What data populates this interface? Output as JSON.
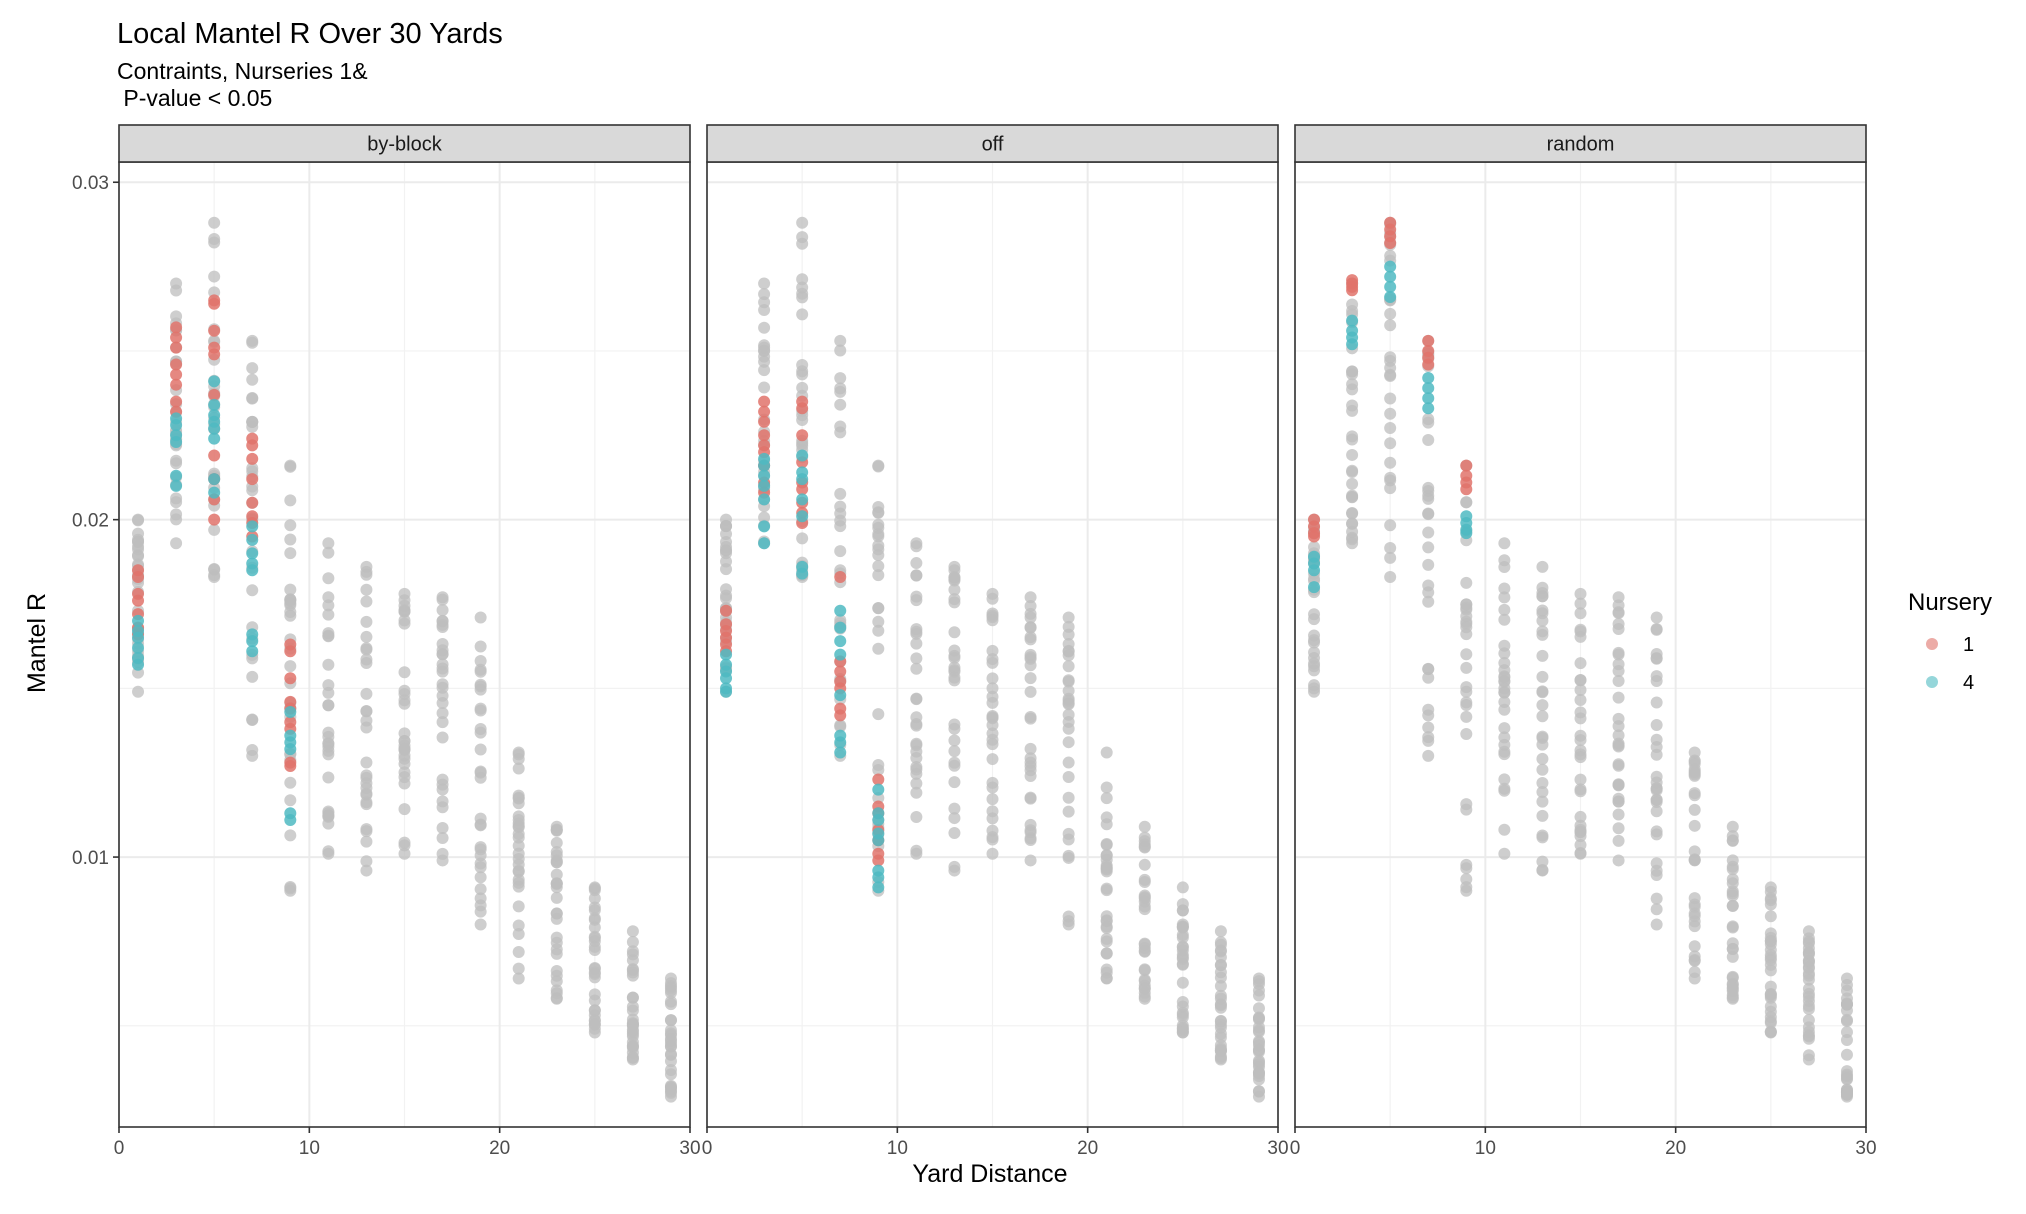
{
  "chart_data": {
    "type": "scatter",
    "title": "Local Mantel R Over 30 Yards",
    "subtitle_lines": [
      "Contraints, Nurseries 1&",
      " P-value < 0.05"
    ],
    "xlabel": "Yard Distance",
    "ylabel": "Mantel R",
    "xlim": [
      0,
      30
    ],
    "ylim": [
      0.002,
      0.0306
    ],
    "x_ticks": [
      0,
      10,
      20,
      30
    ],
    "x_tick_labels": [
      "0",
      "10",
      "20",
      "30"
    ],
    "y_ticks": [
      0.01,
      0.02,
      0.03
    ],
    "y_tick_labels": [
      "0.01",
      "0.02",
      "0.03"
    ],
    "grid": true,
    "facets": [
      "by-block",
      "off",
      "random"
    ],
    "legend": {
      "title": "Nursery",
      "placement": "right",
      "entries": [
        {
          "label": "1",
          "color": "#E0736B"
        },
        {
          "label": "4",
          "color": "#4FBAC2"
        }
      ]
    },
    "colors": {
      "background_points": "#BEBEBE",
      "nursery_1": "#E0736B",
      "nursery_4": "#4FBAC2"
    },
    "background": {
      "x": [
        1,
        3,
        5,
        7,
        9,
        11,
        13,
        15,
        17,
        19,
        21,
        23,
        25,
        27,
        29
      ],
      "ranges": [
        [
          0.0149,
          0.02
        ],
        [
          0.0193,
          0.027
        ],
        [
          0.0183,
          0.0288
        ],
        [
          0.013,
          0.0253
        ],
        [
          0.009,
          0.0216
        ],
        [
          0.0101,
          0.0193
        ],
        [
          0.0096,
          0.0186
        ],
        [
          0.0101,
          0.0178
        ],
        [
          0.0099,
          0.0177
        ],
        [
          0.008,
          0.0171
        ],
        [
          0.0064,
          0.0131
        ],
        [
          0.0058,
          0.0109
        ],
        [
          0.0048,
          0.0091
        ],
        [
          0.004,
          0.0078
        ],
        [
          0.0029,
          0.0064
        ]
      ]
    },
    "highlights": {
      "by-block": [
        {
          "nursery": "1",
          "x": 1,
          "y": [
            0.0185,
            0.0183,
            0.0178,
            0.0176,
            0.0172,
            0.0168,
            0.0166
          ]
        },
        {
          "nursery": "4",
          "x": 1,
          "y": [
            0.017,
            0.0167,
            0.0165,
            0.0162,
            0.0159,
            0.0157
          ]
        },
        {
          "nursery": "1",
          "x": 3,
          "y": [
            0.0257,
            0.0254,
            0.0251,
            0.0246,
            0.0243,
            0.024,
            0.0235,
            0.0232
          ]
        },
        {
          "nursery": "4",
          "x": 3,
          "y": [
            0.023,
            0.0228,
            0.0225,
            0.0223,
            0.0213,
            0.021
          ]
        },
        {
          "nursery": "1",
          "x": 5,
          "y": [
            0.0265,
            0.0264,
            0.0256,
            0.0251,
            0.0249,
            0.0237,
            0.0219,
            0.0212,
            0.0206,
            0.02
          ]
        },
        {
          "nursery": "4",
          "x": 5,
          "y": [
            0.0241,
            0.0234,
            0.0231,
            0.0229,
            0.0227,
            0.0224,
            0.0212,
            0.0208
          ]
        },
        {
          "nursery": "1",
          "x": 7,
          "y": [
            0.0224,
            0.0222,
            0.0218,
            0.0212,
            0.0205,
            0.0201,
            0.0199,
            0.0195
          ]
        },
        {
          "nursery": "4",
          "x": 7,
          "y": [
            0.0198,
            0.0194,
            0.019,
            0.0187,
            0.0185,
            0.0166,
            0.0164,
            0.0161
          ]
        },
        {
          "nursery": "1",
          "x": 9,
          "y": [
            0.0163,
            0.0161,
            0.0153,
            0.0146,
            0.0144,
            0.014,
            0.0138,
            0.0128,
            0.0127
          ]
        },
        {
          "nursery": "4",
          "x": 9,
          "y": [
            0.0143,
            0.0136,
            0.0134,
            0.0132,
            0.0113,
            0.0111
          ]
        }
      ],
      "off": [
        {
          "nursery": "1",
          "x": 1,
          "y": [
            0.0173,
            0.0169,
            0.0167,
            0.0165,
            0.0163,
            0.0161
          ]
        },
        {
          "nursery": "4",
          "x": 1,
          "y": [
            0.016,
            0.0157,
            0.0155,
            0.0153,
            0.015,
            0.0149
          ]
        },
        {
          "nursery": "1",
          "x": 3,
          "y": [
            0.0235,
            0.0232,
            0.0229,
            0.0225,
            0.0222,
            0.022,
            0.0216,
            0.0211,
            0.0208
          ]
        },
        {
          "nursery": "4",
          "x": 3,
          "y": [
            0.0218,
            0.0216,
            0.0213,
            0.021,
            0.0206,
            0.0198,
            0.0193
          ]
        },
        {
          "nursery": "1",
          "x": 5,
          "y": [
            0.0235,
            0.0233,
            0.0225,
            0.0217,
            0.0211,
            0.0209,
            0.0205,
            0.0202,
            0.0199
          ]
        },
        {
          "nursery": "4",
          "x": 5,
          "y": [
            0.0219,
            0.0214,
            0.0212,
            0.0206,
            0.0201,
            0.0186,
            0.0184
          ]
        },
        {
          "nursery": "1",
          "x": 7,
          "y": [
            0.0183,
            0.0158,
            0.0155,
            0.0152,
            0.015,
            0.0144,
            0.0142
          ]
        },
        {
          "nursery": "4",
          "x": 7,
          "y": [
            0.0173,
            0.0168,
            0.0164,
            0.016,
            0.0148,
            0.0136,
            0.0134,
            0.0131
          ]
        },
        {
          "nursery": "1",
          "x": 9,
          "y": [
            0.0123,
            0.0115,
            0.0113,
            0.0108,
            0.0105,
            0.0101,
            0.0099
          ]
        },
        {
          "nursery": "4",
          "x": 9,
          "y": [
            0.012,
            0.0113,
            0.0111,
            0.0107,
            0.0105,
            0.0096,
            0.0094,
            0.0091
          ]
        }
      ],
      "random": [
        {
          "nursery": "1",
          "x": 1,
          "y": [
            0.02,
            0.0198,
            0.0196,
            0.0195
          ]
        },
        {
          "nursery": "4",
          "x": 1,
          "y": [
            0.0189,
            0.0187,
            0.0185,
            0.018
          ]
        },
        {
          "nursery": "1",
          "x": 3,
          "y": [
            0.0271,
            0.027,
            0.0269,
            0.0268
          ]
        },
        {
          "nursery": "4",
          "x": 3,
          "y": [
            0.0259,
            0.0256,
            0.0254,
            0.0252
          ]
        },
        {
          "nursery": "1",
          "x": 5,
          "y": [
            0.0288,
            0.0286,
            0.0284,
            0.0282
          ]
        },
        {
          "nursery": "4",
          "x": 5,
          "y": [
            0.0275,
            0.0272,
            0.0269,
            0.0266
          ]
        },
        {
          "nursery": "1",
          "x": 7,
          "y": [
            0.0253,
            0.025,
            0.0248,
            0.0246
          ]
        },
        {
          "nursery": "4",
          "x": 7,
          "y": [
            0.0242,
            0.0239,
            0.0236,
            0.0233
          ]
        },
        {
          "nursery": "1",
          "x": 9,
          "y": [
            0.0216,
            0.0213,
            0.0211,
            0.0209
          ]
        },
        {
          "nursery": "4",
          "x": 9,
          "y": [
            0.0201,
            0.0199,
            0.0197,
            0.0196
          ]
        }
      ]
    }
  }
}
